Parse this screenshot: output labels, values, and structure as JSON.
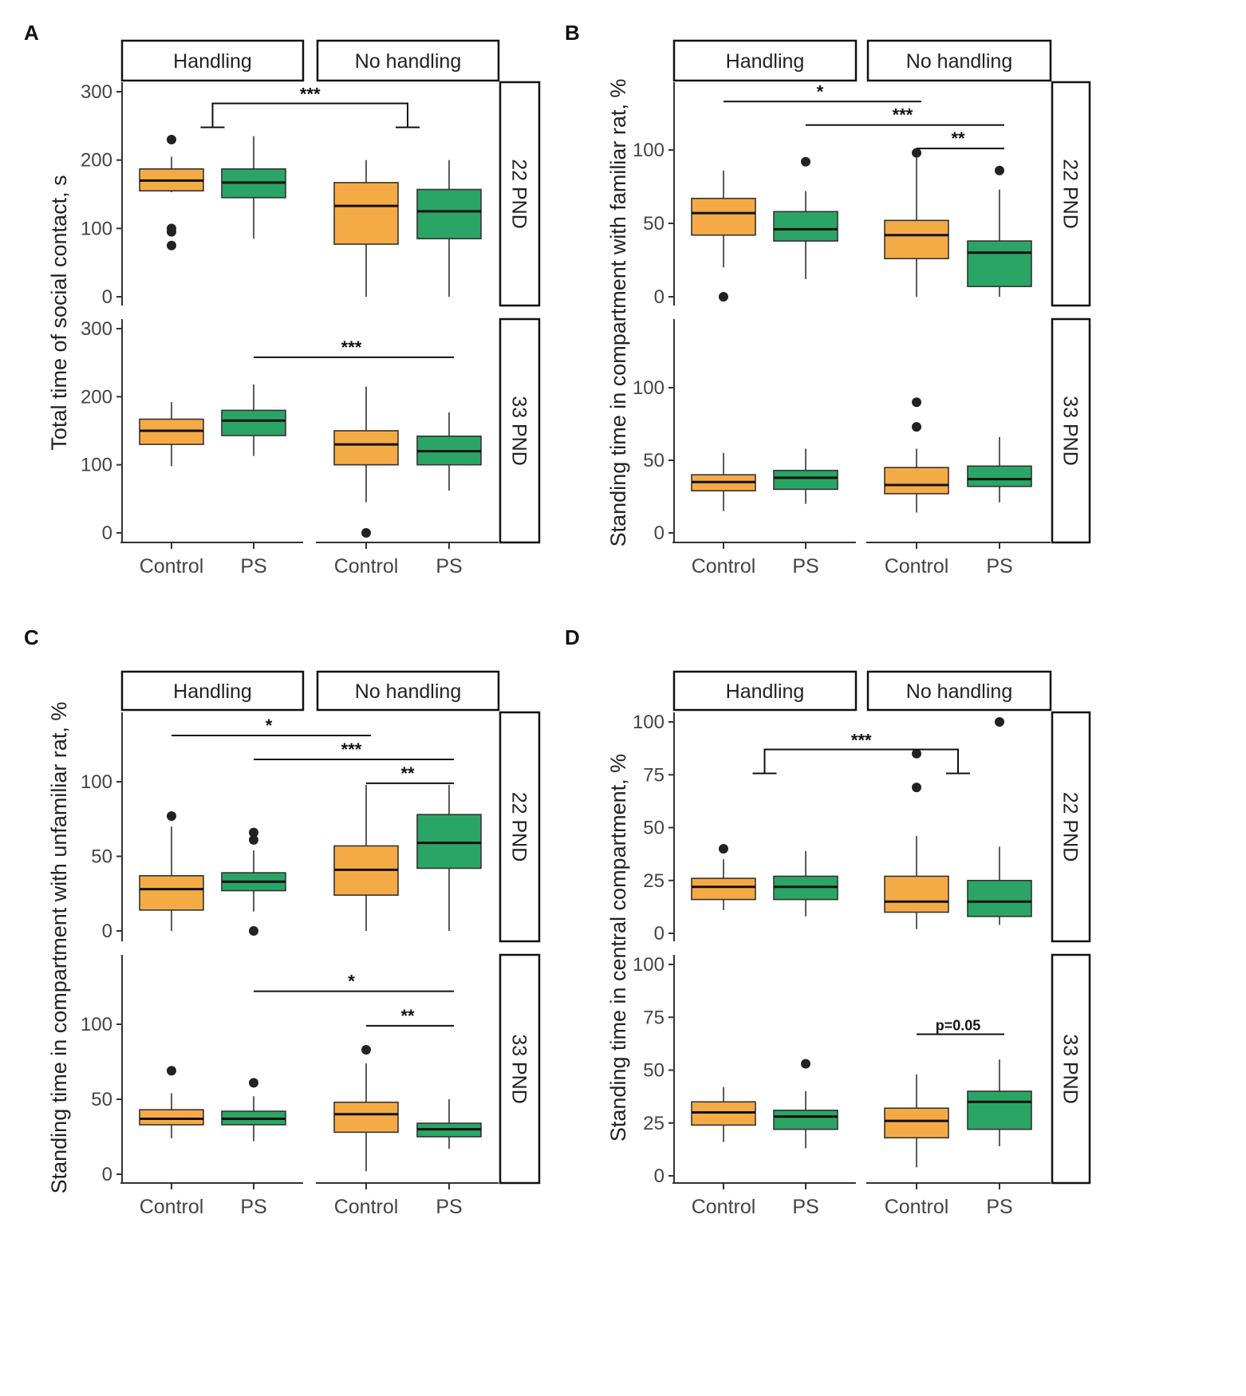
{
  "colors": {
    "control": "#F5AB45",
    "ps": "#2BA566",
    "outline": "#333333",
    "text": "#444444"
  },
  "chart_data": [
    {
      "type": "boxplot",
      "panel_label": "A",
      "ylabel": "Total time of social contact, s",
      "facet_columns": [
        "Handling",
        "No handling"
      ],
      "facet_rows": [
        "22 PND",
        "33 PND"
      ],
      "categories": [
        "Control",
        "PS"
      ],
      "ylim": [
        0,
        320
      ],
      "yticks": [
        0,
        100,
        200,
        300
      ],
      "rows": [
        {
          "row": "22 PND",
          "boxes": [
            {
              "col": "Handling",
              "cat": "Control",
              "lo": 153,
              "q1": 155,
              "med": 170,
              "q3": 187,
              "hi": 205,
              "outliers": [
                230,
                100,
                95,
                75
              ]
            },
            {
              "col": "Handling",
              "cat": "PS",
              "lo": 85,
              "q1": 145,
              "med": 167,
              "q3": 187,
              "hi": 235,
              "outliers": []
            },
            {
              "col": "No handling",
              "cat": "Control",
              "lo": 0,
              "q1": 77,
              "med": 133,
              "q3": 167,
              "hi": 200,
              "outliers": []
            },
            {
              "col": "No handling",
              "cat": "PS",
              "lo": 0,
              "q1": 85,
              "med": 125,
              "q3": 157,
              "hi": 200,
              "outliers": []
            }
          ],
          "annotations": [
            {
              "type": "bracket",
              "label": "***",
              "from": "Handling",
              "to": "No handling",
              "y": 283
            }
          ]
        },
        {
          "row": "33 PND",
          "boxes": [
            {
              "col": "Handling",
              "cat": "Control",
              "lo": 98,
              "q1": 130,
              "med": 150,
              "q3": 167,
              "hi": 192,
              "outliers": []
            },
            {
              "col": "Handling",
              "cat": "PS",
              "lo": 113,
              "q1": 143,
              "med": 165,
              "q3": 180,
              "hi": 218,
              "outliers": []
            },
            {
              "col": "No handling",
              "cat": "Control",
              "lo": 45,
              "q1": 100,
              "med": 130,
              "q3": 150,
              "hi": 215,
              "outliers": [
                0
              ]
            },
            {
              "col": "No handling",
              "cat": "PS",
              "lo": 62,
              "q1": 100,
              "med": 120,
              "q3": 142,
              "hi": 177,
              "outliers": []
            }
          ],
          "annotations": [
            {
              "type": "line",
              "label": "***",
              "from": "Handling PS",
              "to": "No handling PS",
              "y": 258
            }
          ]
        }
      ]
    },
    {
      "type": "boxplot",
      "panel_label": "B",
      "ylabel": "Standing time in compartment with familiar rat, %",
      "facet_columns": [
        "Handling",
        "No handling"
      ],
      "facet_rows": [
        "22 PND",
        "33 PND"
      ],
      "categories": [
        "Control",
        "PS"
      ],
      "ylim": [
        0,
        140
      ],
      "yticks": [
        0,
        50,
        100
      ],
      "rows": [
        {
          "row": "22 PND",
          "boxes": [
            {
              "col": "Handling",
              "cat": "Control",
              "lo": 20,
              "q1": 42,
              "med": 57,
              "q3": 67,
              "hi": 86,
              "outliers": [
                0
              ]
            },
            {
              "col": "Handling",
              "cat": "PS",
              "lo": 12,
              "q1": 38,
              "med": 46,
              "q3": 58,
              "hi": 72,
              "outliers": [
                92
              ]
            },
            {
              "col": "No handling",
              "cat": "Control",
              "lo": 0,
              "q1": 26,
              "med": 42,
              "q3": 52,
              "hi": 95,
              "outliers": [
                98
              ]
            },
            {
              "col": "No handling",
              "cat": "PS",
              "lo": 0,
              "q1": 7,
              "med": 30,
              "q3": 38,
              "hi": 73,
              "outliers": [
                86
              ]
            }
          ],
          "annotations": [
            {
              "type": "line",
              "label": "*",
              "from": "Handling Control",
              "to": "No handling Control",
              "y": 133
            },
            {
              "type": "line",
              "label": "***",
              "from": "Handling PS",
              "to": "No handling PS",
              "y": 117
            },
            {
              "type": "line",
              "label": "**",
              "from": "No handling Control",
              "to": "No handling PS",
              "y": 101
            }
          ]
        },
        {
          "row": "33 PND",
          "boxes": [
            {
              "col": "Handling",
              "cat": "Control",
              "lo": 15,
              "q1": 29,
              "med": 35,
              "q3": 40,
              "hi": 55,
              "outliers": []
            },
            {
              "col": "Handling",
              "cat": "PS",
              "lo": 20,
              "q1": 30,
              "med": 38,
              "q3": 43,
              "hi": 58,
              "outliers": []
            },
            {
              "col": "No handling",
              "cat": "Control",
              "lo": 14,
              "q1": 27,
              "med": 33,
              "q3": 45,
              "hi": 58,
              "outliers": [
                90,
                73
              ]
            },
            {
              "col": "No handling",
              "cat": "PS",
              "lo": 21,
              "q1": 32,
              "med": 37,
              "q3": 46,
              "hi": 66,
              "outliers": []
            }
          ],
          "annotations": []
        }
      ]
    },
    {
      "type": "boxplot",
      "panel_label": "C",
      "ylabel": "Standing time in compartment with unfamiliar rat, %",
      "facet_columns": [
        "Handling",
        "No handling"
      ],
      "facet_rows": [
        "22 PND",
        "33 PND"
      ],
      "categories": [
        "Control",
        "PS"
      ],
      "ylim": [
        0,
        140
      ],
      "yticks": [
        0,
        50,
        100
      ],
      "rows": [
        {
          "row": "22 PND",
          "boxes": [
            {
              "col": "Handling",
              "cat": "Control",
              "lo": 0,
              "q1": 14,
              "med": 28,
              "q3": 37,
              "hi": 70,
              "outliers": [
                77
              ]
            },
            {
              "col": "Handling",
              "cat": "PS",
              "lo": 13,
              "q1": 27,
              "med": 33,
              "q3": 39,
              "hi": 54,
              "outliers": [
                66,
                61,
                0
              ]
            },
            {
              "col": "No handling",
              "cat": "Control",
              "lo": 0,
              "q1": 24,
              "med": 41,
              "q3": 57,
              "hi": 98,
              "outliers": []
            },
            {
              "col": "No handling",
              "cat": "PS",
              "lo": 0,
              "q1": 42,
              "med": 59,
              "q3": 78,
              "hi": 98,
              "outliers": []
            }
          ],
          "annotations": [
            {
              "type": "line",
              "label": "*",
              "from": "Handling Control",
              "to": "No handling Control",
              "y": 131
            },
            {
              "type": "line",
              "label": "***",
              "from": "Handling PS",
              "to": "No handling PS",
              "y": 115
            },
            {
              "type": "line",
              "label": "**",
              "from": "No handling Control",
              "to": "No handling PS",
              "y": 99
            }
          ]
        },
        {
          "row": "33 PND",
          "boxes": [
            {
              "col": "Handling",
              "cat": "Control",
              "lo": 24,
              "q1": 33,
              "med": 37,
              "q3": 43,
              "hi": 54,
              "outliers": [
                69
              ]
            },
            {
              "col": "Handling",
              "cat": "PS",
              "lo": 22,
              "q1": 33,
              "med": 37,
              "q3": 42,
              "hi": 52,
              "outliers": [
                61
              ]
            },
            {
              "col": "No handling",
              "cat": "Control",
              "lo": 2,
              "q1": 28,
              "med": 40,
              "q3": 48,
              "hi": 74,
              "outliers": [
                83
              ]
            },
            {
              "col": "No handling",
              "cat": "PS",
              "lo": 17,
              "q1": 25,
              "med": 30,
              "q3": 34,
              "hi": 50,
              "outliers": []
            }
          ],
          "annotations": [
            {
              "type": "line",
              "label": "*",
              "from": "Handling PS",
              "to": "No handling PS",
              "y": 122
            },
            {
              "type": "line",
              "label": "**",
              "from": "No handling Control",
              "to": "No handling PS",
              "y": 99
            }
          ]
        }
      ]
    },
    {
      "type": "boxplot",
      "panel_label": "D",
      "ylabel": "Standing time in central compartment, %",
      "facet_columns": [
        "Handling",
        "No handling"
      ],
      "facet_rows": [
        "22 PND",
        "33 PND"
      ],
      "categories": [
        "Control",
        "PS"
      ],
      "ylim": [
        0,
        106
      ],
      "yticks": [
        0,
        25,
        50,
        75,
        100
      ],
      "rows": [
        {
          "row": "22 PND",
          "boxes": [
            {
              "col": "Handling",
              "cat": "Control",
              "lo": 11,
              "q1": 16,
              "med": 22,
              "q3": 26,
              "hi": 35,
              "outliers": [
                40
              ]
            },
            {
              "col": "Handling",
              "cat": "PS",
              "lo": 8,
              "q1": 16,
              "med": 22,
              "q3": 27,
              "hi": 39,
              "outliers": []
            },
            {
              "col": "No handling",
              "cat": "Control",
              "lo": 2,
              "q1": 10,
              "med": 15,
              "q3": 27,
              "hi": 46,
              "outliers": [
                85,
                69
              ]
            },
            {
              "col": "No handling",
              "cat": "PS",
              "lo": 4,
              "q1": 8,
              "med": 15,
              "q3": 25,
              "hi": 41,
              "outliers": [
                100
              ]
            }
          ],
          "annotations": [
            {
              "type": "bracket",
              "label": "***",
              "from": "Handling",
              "to": "No handling",
              "y": 87
            }
          ]
        },
        {
          "row": "33 PND",
          "boxes": [
            {
              "col": "Handling",
              "cat": "Control",
              "lo": 16,
              "q1": 24,
              "med": 30,
              "q3": 35,
              "hi": 42,
              "outliers": []
            },
            {
              "col": "Handling",
              "cat": "PS",
              "lo": 13,
              "q1": 22,
              "med": 28,
              "q3": 31,
              "hi": 40,
              "outliers": [
                53
              ]
            },
            {
              "col": "No handling",
              "cat": "Control",
              "lo": 4,
              "q1": 18,
              "med": 26,
              "q3": 32,
              "hi": 48,
              "outliers": []
            },
            {
              "col": "No handling",
              "cat": "PS",
              "lo": 14,
              "q1": 22,
              "med": 35,
              "q3": 40,
              "hi": 55,
              "outliers": []
            }
          ],
          "annotations": [
            {
              "type": "line",
              "label": "p=0.05",
              "from": "No handling Control",
              "to": "No handling PS",
              "y": 67
            }
          ]
        }
      ]
    }
  ]
}
